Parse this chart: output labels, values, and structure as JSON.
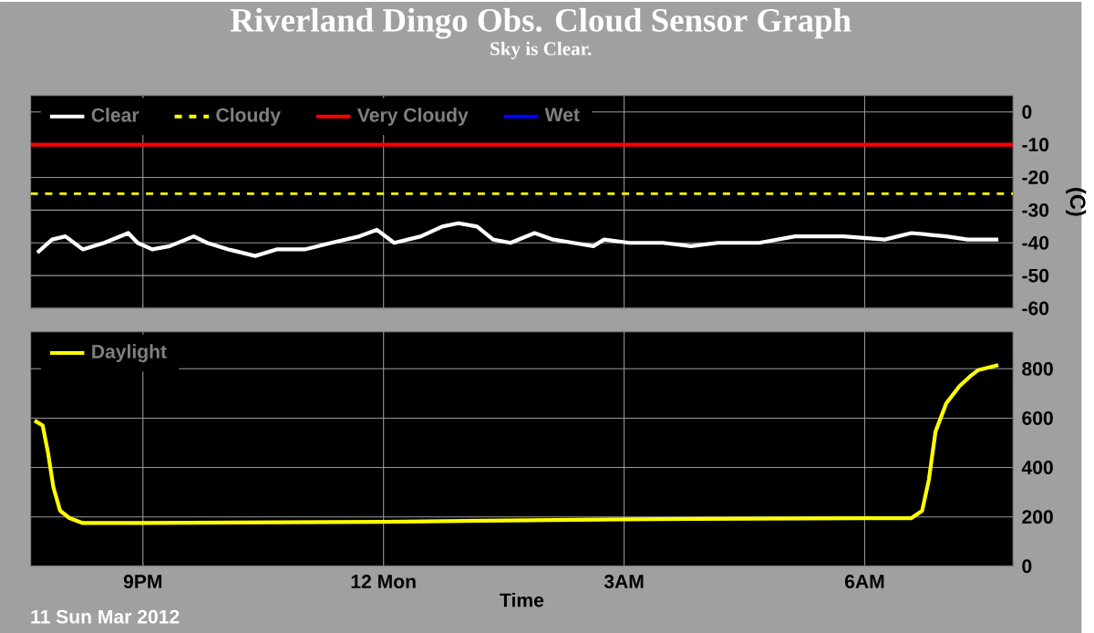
{
  "chart_data": [
    {
      "type": "line",
      "title": "Riverland Dingo Obs. Cloud Sensor Graph",
      "subtitle": "Sky is Clear.",
      "ylabel": "(C)",
      "xlim": [
        "2012-03-11T19:36",
        "2012-03-12T07:51"
      ],
      "ylim": [
        -60,
        5
      ],
      "xticks": [
        {
          "value": "2012-03-11T21:00",
          "label": null
        },
        {
          "value": "2012-03-12T00:00",
          "label": null
        },
        {
          "value": "2012-03-12T03:00",
          "label": null
        },
        {
          "value": "2012-03-12T06:00",
          "label": null
        }
      ],
      "yticks": [
        0,
        -10,
        -20,
        -30,
        -40,
        -50,
        -60
      ],
      "tick_labels": "y",
      "grid": true,
      "legend": "top left",
      "series": [
        {
          "name": "Clear",
          "color": "#ffffff",
          "x": [
            "2012-03-11T19:41",
            "2012-03-11T19:52",
            "2012-03-11T20:02",
            "2012-03-11T20:15",
            "2012-03-11T20:31",
            "2012-03-11T20:49",
            "2012-03-11T20:56",
            "2012-03-11T21:07",
            "2012-03-11T21:20",
            "2012-03-11T21:38",
            "2012-03-11T21:48",
            "2012-03-11T22:04",
            "2012-03-11T22:24",
            "2012-03-11T22:40",
            "2012-03-11T23:01",
            "2012-03-11T23:21",
            "2012-03-11T23:42",
            "2012-03-11T23:55",
            "2012-03-12T00:08",
            "2012-03-12T00:28",
            "2012-03-12T00:44",
            "2012-03-12T00:56",
            "2012-03-12T01:10",
            "2012-03-12T01:22",
            "2012-03-12T01:35",
            "2012-03-12T01:53",
            "2012-03-12T02:07",
            "2012-03-12T02:22",
            "2012-03-12T02:37",
            "2012-03-12T02:45",
            "2012-03-12T03:04",
            "2012-03-12T03:29",
            "2012-03-12T03:50",
            "2012-03-12T04:10",
            "2012-03-12T04:41",
            "2012-03-12T05:08",
            "2012-03-12T05:23",
            "2012-03-12T05:44",
            "2012-03-12T06:15",
            "2012-03-12T06:35",
            "2012-03-12T07:01",
            "2012-03-12T07:17",
            "2012-03-12T07:40"
          ],
          "values": [
            -43,
            -39,
            -38,
            -42,
            -40,
            -37,
            -40,
            -42,
            -41,
            -38,
            -40,
            -42,
            -44,
            -42,
            -42,
            -40,
            -38,
            -36,
            -40,
            -38,
            -35,
            -34,
            -35,
            -39,
            -40,
            -37,
            -39,
            -40,
            -41,
            -39,
            -40,
            -40,
            -41,
            -40,
            -40,
            -38,
            -38,
            -38,
            -39,
            -37,
            -38,
            -39,
            -39
          ]
        },
        {
          "name": "Cloudy",
          "color": "#ffff00",
          "line_style": "dashed",
          "x": [
            "2012-03-11T19:36",
            "2012-03-12T07:51"
          ],
          "values": [
            -25,
            -25
          ]
        },
        {
          "name": "Very Cloudy",
          "color": "#ff0000",
          "x": [
            "2012-03-11T19:36",
            "2012-03-12T07:51"
          ],
          "values": [
            -10,
            -10
          ]
        },
        {
          "name": "Wet",
          "color": "#0000ff"
        }
      ]
    },
    {
      "type": "line",
      "xlabel": "Time",
      "annotations": [
        "11 Sun Mar 2012"
      ],
      "xlim": [
        "2012-03-11T19:36",
        "2012-03-12T07:51"
      ],
      "ylim": [
        0,
        950
      ],
      "xticks": [
        {
          "value": "2012-03-11T21:00",
          "label": "9PM"
        },
        {
          "value": "2012-03-12T00:00",
          "label": "12 Mon"
        },
        {
          "value": "2012-03-12T03:00",
          "label": "3AM"
        },
        {
          "value": "2012-03-12T06:00",
          "label": "6AM"
        }
      ],
      "yticks": [
        0,
        200,
        400,
        600,
        800
      ],
      "grid": true,
      "legend": "top left",
      "series": [
        {
          "name": "Daylight",
          "color": "#ffff00",
          "x": [
            "2012-03-11T19:39",
            "2012-03-11T19:45",
            "2012-03-11T19:49",
            "2012-03-11T19:53",
            "2012-03-11T19:58",
            "2012-03-11T20:05",
            "2012-03-11T20:15",
            "2012-03-11T21:00",
            "2012-03-12T00:00",
            "2012-03-12T03:00",
            "2012-03-12T06:00",
            "2012-03-12T06:35",
            "2012-03-12T06:43",
            "2012-03-12T06:48",
            "2012-03-12T06:53",
            "2012-03-12T07:01",
            "2012-03-12T07:11",
            "2012-03-12T07:19",
            "2012-03-12T07:25",
            "2012-03-12T07:40"
          ],
          "values": [
            590,
            570,
            460,
            320,
            225,
            195,
            175,
            175,
            180,
            190,
            195,
            195,
            225,
            350,
            545,
            660,
            730,
            770,
            795,
            815
          ]
        }
      ]
    }
  ]
}
